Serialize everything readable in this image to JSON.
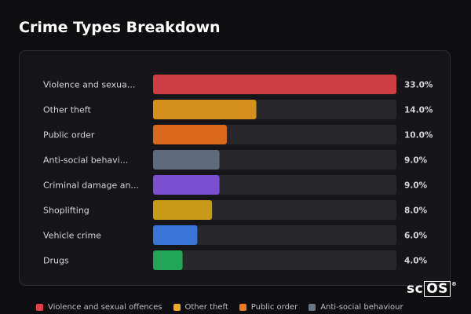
{
  "title": "Crime Types Breakdown",
  "chart_data": {
    "type": "bar",
    "orientation": "horizontal",
    "title": "Crime Types Breakdown",
    "xlim": [
      0,
      33
    ],
    "categories": [
      "Violence and sexua...",
      "Other theft",
      "Public order",
      "Anti-social behavi...",
      "Criminal damage an...",
      "Shoplifting",
      "Vehicle crime",
      "Drugs"
    ],
    "values": [
      33.0,
      14.0,
      10.0,
      9.0,
      9.0,
      8.0,
      6.0,
      4.0
    ],
    "value_labels": [
      "33.0%",
      "14.0%",
      "10.0%",
      "9.0%",
      "9.0%",
      "8.0%",
      "6.0%",
      "4.0%"
    ],
    "colors": [
      "#cf3e45",
      "#d4901a",
      "#d9681c",
      "#5f6b7a",
      "#7a4fd0",
      "#c99a17",
      "#3a74d6",
      "#22a455"
    ],
    "track_color": "#26262b",
    "legend_position": "bottom"
  },
  "legend": [
    {
      "label": "Violence and sexual offences",
      "color": "#e0404a"
    },
    {
      "label": "Other theft",
      "color": "#f0a81e"
    },
    {
      "label": "Public order",
      "color": "#ee7a22"
    },
    {
      "label": "Anti-social behaviour",
      "color": "#6a7585"
    }
  ],
  "watermark": {
    "part1": "sc",
    "part2": "OS",
    "reg": "®"
  }
}
